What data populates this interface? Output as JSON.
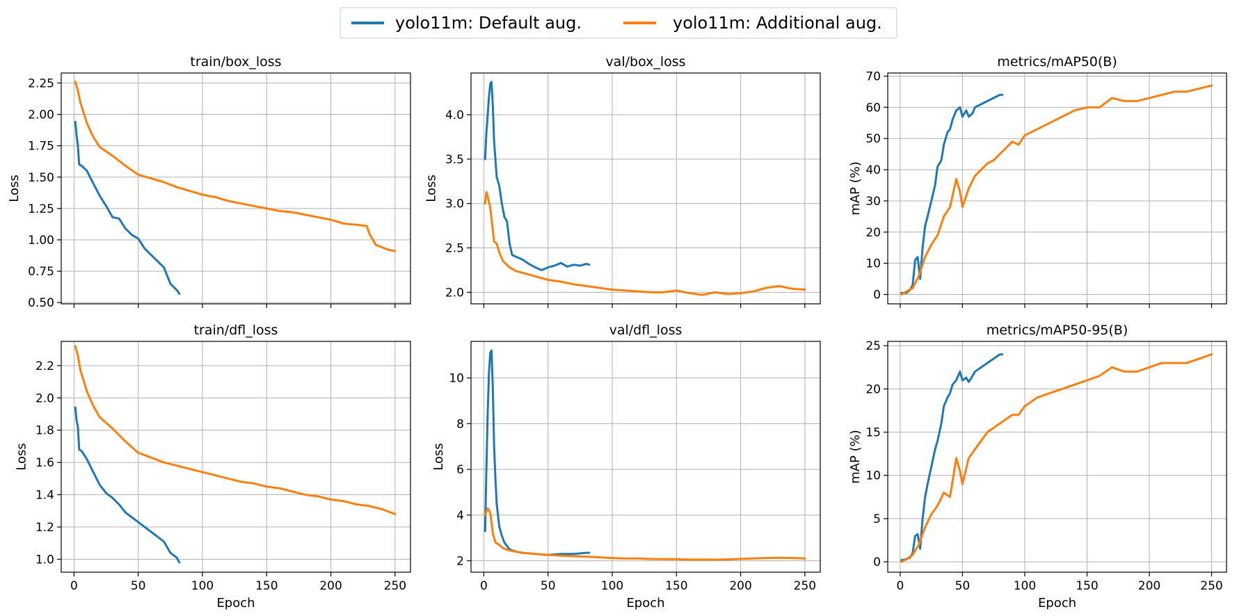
{
  "legend": {
    "items": [
      {
        "label": "yolo11m: Default aug.",
        "color": "#1f77b4"
      },
      {
        "label": "yolo11m: Additional aug.",
        "color": "#ff7f0e"
      }
    ]
  },
  "chart_data": [
    {
      "type": "line",
      "title": "train/box_loss",
      "xlabel": "",
      "ylabel": "Loss",
      "xlim": [
        -10,
        262
      ],
      "ylim": [
        0.49,
        2.33
      ],
      "xticks": [
        0,
        50,
        100,
        150,
        200,
        250
      ],
      "yticks": [
        0.5,
        0.75,
        1.0,
        1.25,
        1.5,
        1.75,
        2.0,
        2.25
      ],
      "ytick_labels": [
        "0.50",
        "0.75",
        "1.00",
        "1.25",
        "1.50",
        "1.75",
        "2.00",
        "2.25"
      ],
      "xtick_labels_visible": false,
      "grid": true,
      "series": [
        {
          "color": "#1f77b4",
          "x": [
            1,
            2,
            3,
            4,
            6,
            10,
            15,
            20,
            25,
            30,
            35,
            40,
            45,
            50,
            55,
            60,
            65,
            70,
            75,
            80,
            82
          ],
          "y": [
            1.94,
            1.83,
            1.75,
            1.6,
            1.59,
            1.55,
            1.45,
            1.35,
            1.27,
            1.18,
            1.17,
            1.09,
            1.04,
            1.01,
            0.93,
            0.88,
            0.83,
            0.78,
            0.65,
            0.6,
            0.57
          ]
        },
        {
          "color": "#ff7f0e",
          "x": [
            1,
            3,
            5,
            10,
            15,
            20,
            30,
            40,
            50,
            60,
            70,
            80,
            90,
            100,
            110,
            120,
            130,
            140,
            150,
            160,
            170,
            180,
            190,
            200,
            210,
            220,
            228,
            230,
            235,
            240,
            245,
            250
          ],
          "y": [
            2.26,
            2.19,
            2.09,
            1.93,
            1.82,
            1.74,
            1.67,
            1.59,
            1.52,
            1.49,
            1.46,
            1.42,
            1.39,
            1.36,
            1.34,
            1.31,
            1.29,
            1.27,
            1.25,
            1.23,
            1.22,
            1.2,
            1.18,
            1.16,
            1.13,
            1.12,
            1.11,
            1.05,
            0.96,
            0.94,
            0.92,
            0.91
          ]
        }
      ]
    },
    {
      "type": "line",
      "title": "val/box_loss",
      "xlabel": "",
      "ylabel": "Loss",
      "xlim": [
        -10,
        262
      ],
      "ylim": [
        1.87,
        4.47
      ],
      "xticks": [
        0,
        50,
        100,
        150,
        200,
        250
      ],
      "yticks": [
        2.0,
        2.5,
        3.0,
        3.5,
        4.0
      ],
      "ytick_labels": [
        "2.0",
        "2.5",
        "3.0",
        "3.5",
        "4.0"
      ],
      "xtick_labels_visible": false,
      "grid": true,
      "series": [
        {
          "color": "#1f77b4",
          "x": [
            1,
            2,
            3,
            4,
            5,
            6,
            7,
            8,
            10,
            12,
            14,
            16,
            18,
            20,
            22,
            25,
            30,
            35,
            40,
            45,
            50,
            55,
            60,
            65,
            70,
            75,
            80,
            82
          ],
          "y": [
            3.5,
            3.8,
            4.0,
            4.2,
            4.35,
            4.37,
            4.1,
            3.7,
            3.3,
            3.2,
            3.0,
            2.85,
            2.8,
            2.55,
            2.42,
            2.4,
            2.37,
            2.32,
            2.28,
            2.25,
            2.28,
            2.3,
            2.33,
            2.29,
            2.31,
            2.3,
            2.32,
            2.31
          ]
        },
        {
          "color": "#ff7f0e",
          "x": [
            1,
            2,
            3,
            5,
            7,
            8,
            10,
            12,
            15,
            20,
            25,
            30,
            40,
            50,
            60,
            70,
            80,
            90,
            100,
            110,
            120,
            130,
            140,
            150,
            160,
            170,
            180,
            190,
            200,
            210,
            220,
            230,
            240,
            250
          ],
          "y": [
            3.0,
            3.13,
            3.08,
            2.95,
            2.7,
            2.57,
            2.55,
            2.45,
            2.35,
            2.28,
            2.24,
            2.22,
            2.18,
            2.14,
            2.12,
            2.09,
            2.07,
            2.05,
            2.03,
            2.02,
            2.01,
            2.0,
            2.0,
            2.02,
            1.99,
            1.97,
            2.0,
            1.98,
            1.99,
            2.01,
            2.05,
            2.07,
            2.04,
            2.03
          ]
        }
      ]
    },
    {
      "type": "line",
      "title": "metrics/mAP50(B)",
      "xlabel": "",
      "ylabel": "mAP (%)",
      "xlim": [
        -10,
        262
      ],
      "ylim": [
        -3,
        71
      ],
      "xticks": [
        0,
        50,
        100,
        150,
        200,
        250
      ],
      "yticks": [
        0,
        10,
        20,
        30,
        40,
        50,
        60,
        70
      ],
      "ytick_labels": [
        "0",
        "10",
        "20",
        "30",
        "40",
        "50",
        "60",
        "70"
      ],
      "xtick_labels_visible": false,
      "grid": true,
      "series": [
        {
          "color": "#1f77b4",
          "x": [
            1,
            5,
            8,
            10,
            12,
            14,
            16,
            18,
            20,
            22,
            25,
            28,
            30,
            33,
            35,
            38,
            40,
            42,
            45,
            48,
            50,
            53,
            55,
            58,
            60,
            65,
            70,
            75,
            80,
            82
          ],
          "y": [
            0.5,
            0.5,
            1.5,
            3,
            11,
            12,
            5,
            15,
            22,
            25,
            30,
            35,
            41,
            43,
            48,
            52,
            53,
            56,
            59,
            60,
            57,
            59,
            57,
            58,
            60,
            61,
            62,
            63,
            64,
            64
          ]
        },
        {
          "color": "#ff7f0e",
          "x": [
            1,
            5,
            10,
            15,
            20,
            25,
            30,
            35,
            40,
            45,
            48,
            50,
            55,
            60,
            65,
            70,
            75,
            80,
            85,
            90,
            95,
            100,
            110,
            120,
            130,
            140,
            150,
            160,
            170,
            180,
            190,
            200,
            210,
            220,
            230,
            240,
            250
          ],
          "y": [
            0,
            1,
            2,
            6,
            12,
            16,
            19,
            25,
            28,
            37,
            33,
            28,
            34,
            38,
            40,
            42,
            43,
            45,
            47,
            49,
            48,
            51,
            53,
            55,
            57,
            59,
            60,
            60,
            63,
            62,
            62,
            63,
            64,
            65,
            65,
            66,
            67
          ]
        }
      ]
    },
    {
      "type": "line",
      "title": "train/dfl_loss",
      "xlabel": "Epoch",
      "ylabel": "Loss",
      "xlim": [
        -10,
        262
      ],
      "ylim": [
        0.92,
        2.35
      ],
      "xticks": [
        0,
        50,
        100,
        150,
        200,
        250
      ],
      "yticks": [
        1.0,
        1.2,
        1.4,
        1.6,
        1.8,
        2.0,
        2.2
      ],
      "ytick_labels": [
        "1.0",
        "1.2",
        "1.4",
        "1.6",
        "1.8",
        "2.0",
        "2.2"
      ],
      "xtick_labels_visible": true,
      "grid": true,
      "series": [
        {
          "color": "#1f77b4",
          "x": [
            1,
            2,
            3,
            4,
            6,
            10,
            15,
            20,
            25,
            30,
            35,
            40,
            45,
            50,
            55,
            60,
            65,
            70,
            75,
            80,
            82
          ],
          "y": [
            1.94,
            1.86,
            1.82,
            1.68,
            1.67,
            1.62,
            1.54,
            1.46,
            1.41,
            1.38,
            1.34,
            1.29,
            1.26,
            1.23,
            1.2,
            1.17,
            1.14,
            1.11,
            1.04,
            1.01,
            0.98
          ]
        },
        {
          "color": "#ff7f0e",
          "x": [
            1,
            3,
            5,
            10,
            15,
            20,
            30,
            40,
            50,
            60,
            70,
            80,
            90,
            100,
            110,
            120,
            130,
            140,
            150,
            160,
            170,
            180,
            190,
            200,
            210,
            220,
            230,
            240,
            250
          ],
          "y": [
            2.32,
            2.26,
            2.17,
            2.04,
            1.95,
            1.88,
            1.81,
            1.73,
            1.66,
            1.63,
            1.6,
            1.58,
            1.56,
            1.54,
            1.52,
            1.5,
            1.48,
            1.47,
            1.45,
            1.44,
            1.42,
            1.4,
            1.39,
            1.37,
            1.36,
            1.34,
            1.33,
            1.31,
            1.28
          ]
        }
      ]
    },
    {
      "type": "line",
      "title": "val/dfl_loss",
      "xlabel": "Epoch",
      "ylabel": "Loss",
      "xlim": [
        -10,
        262
      ],
      "ylim": [
        1.5,
        11.6
      ],
      "xticks": [
        0,
        50,
        100,
        150,
        200,
        250
      ],
      "yticks": [
        2,
        4,
        6,
        8,
        10
      ],
      "ytick_labels": [
        "2",
        "4",
        "6",
        "8",
        "10"
      ],
      "xtick_labels_visible": true,
      "grid": true,
      "series": [
        {
          "color": "#1f77b4",
          "x": [
            1,
            2,
            3,
            4,
            5,
            6,
            7,
            8,
            9,
            10,
            12,
            14,
            16,
            20,
            25,
            30,
            40,
            50,
            60,
            70,
            80,
            82
          ],
          "y": [
            3.3,
            6.0,
            8.5,
            10.2,
            11.1,
            11.2,
            9.5,
            7.0,
            5.6,
            4.5,
            3.5,
            3.1,
            2.8,
            2.5,
            2.4,
            2.35,
            2.3,
            2.25,
            2.3,
            2.3,
            2.35,
            2.35
          ]
        },
        {
          "color": "#ff7f0e",
          "x": [
            1,
            3,
            5,
            7,
            9,
            12,
            15,
            20,
            30,
            40,
            50,
            60,
            70,
            80,
            90,
            100,
            110,
            120,
            130,
            140,
            150,
            160,
            170,
            180,
            190,
            200,
            210,
            220,
            230,
            240,
            250
          ],
          "y": [
            4.0,
            4.3,
            4.1,
            3.2,
            2.8,
            2.7,
            2.55,
            2.45,
            2.35,
            2.3,
            2.25,
            2.22,
            2.2,
            2.18,
            2.15,
            2.12,
            2.1,
            2.1,
            2.08,
            2.07,
            2.07,
            2.05,
            2.05,
            2.05,
            2.06,
            2.08,
            2.1,
            2.12,
            2.13,
            2.12,
            2.1
          ]
        }
      ]
    },
    {
      "type": "line",
      "title": "metrics/mAP50-95(B)",
      "xlabel": "Epoch",
      "ylabel": "mAP (%)",
      "xlim": [
        -10,
        262
      ],
      "ylim": [
        -1.2,
        25.5
      ],
      "xticks": [
        0,
        50,
        100,
        150,
        200,
        250
      ],
      "yticks": [
        0,
        5,
        10,
        15,
        20,
        25
      ],
      "ytick_labels": [
        "0",
        "5",
        "10",
        "15",
        "20",
        "25"
      ],
      "xtick_labels_visible": true,
      "grid": true,
      "series": [
        {
          "color": "#1f77b4",
          "x": [
            1,
            5,
            8,
            10,
            12,
            14,
            16,
            18,
            20,
            22,
            25,
            28,
            30,
            33,
            35,
            38,
            40,
            42,
            45,
            48,
            50,
            53,
            55,
            58,
            60,
            65,
            70,
            75,
            80,
            82
          ],
          "y": [
            0.2,
            0.3,
            0.5,
            1,
            3,
            3.2,
            1.5,
            5,
            7.5,
            9,
            11,
            13,
            14,
            16,
            18,
            19,
            19.5,
            20.5,
            21,
            22,
            21,
            21.3,
            20.8,
            21.5,
            22,
            22.5,
            23,
            23.5,
            24,
            24
          ]
        },
        {
          "color": "#ff7f0e",
          "x": [
            1,
            5,
            10,
            15,
            20,
            25,
            30,
            35,
            40,
            45,
            48,
            50,
            55,
            60,
            65,
            70,
            75,
            80,
            85,
            90,
            95,
            100,
            110,
            120,
            130,
            140,
            150,
            160,
            170,
            180,
            190,
            200,
            210,
            220,
            230,
            240,
            250
          ],
          "y": [
            0,
            0.3,
            0.8,
            2,
            4,
            5.5,
            6.5,
            8,
            7.5,
            12,
            10.5,
            9,
            12,
            13,
            14,
            15,
            15.5,
            16,
            16.5,
            17,
            17,
            18,
            19,
            19.5,
            20,
            20.5,
            21,
            21.5,
            22.5,
            22,
            22,
            22.5,
            23,
            23,
            23,
            23.5,
            24
          ]
        }
      ]
    }
  ]
}
